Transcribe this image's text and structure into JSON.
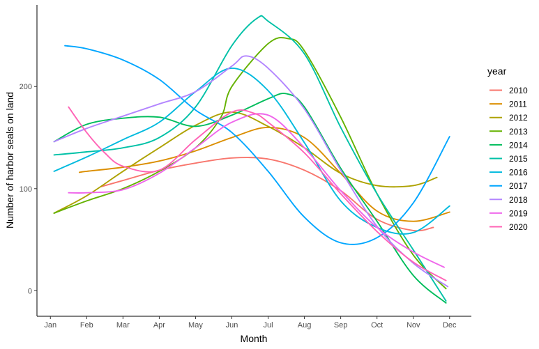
{
  "chart_data": {
    "type": "line",
    "xlabel": "Month",
    "ylabel": "Number of harbor seals on land",
    "x_ticks": [
      "Jan",
      "Feb",
      "Mar",
      "Apr",
      "May",
      "Jun",
      "Jul",
      "Aug",
      "Sep",
      "Oct",
      "Nov",
      "Dec"
    ],
    "y_ticks": [
      0,
      100,
      200
    ],
    "xlim": [
      0.63,
      12.6
    ],
    "ylim": [
      -25,
      280
    ],
    "legend_title": "year",
    "legend_position": "right",
    "grid": false,
    "series": [
      {
        "name": "2010",
        "color": "#F8766D",
        "x": [
          2.4,
          3,
          4,
          5,
          6,
          7,
          8,
          9,
          10,
          11,
          11.55
        ],
        "y": [
          102,
          108,
          118,
          125,
          130,
          129,
          118,
          98,
          70,
          59,
          62
        ]
      },
      {
        "name": "2011",
        "color": "#DB8E00",
        "x": [
          1.8,
          2,
          3,
          4,
          5,
          6,
          7,
          8,
          9,
          10,
          11,
          12
        ],
        "y": [
          116,
          117,
          121,
          127,
          137,
          150,
          160,
          150,
          115,
          78,
          68,
          77
        ]
      },
      {
        "name": "2012",
        "color": "#AEA200",
        "x": [
          1.1,
          2,
          3,
          4,
          5,
          6,
          7,
          8,
          9,
          10,
          11,
          11.65
        ],
        "y": [
          76,
          93,
          117,
          140,
          162,
          175,
          161,
          140,
          115,
          103,
          103,
          111
        ]
      },
      {
        "name": "2013",
        "color": "#64B200",
        "x": [
          1.1,
          2,
          3,
          4,
          5,
          5.7,
          6,
          7,
          7.55,
          8,
          9,
          10,
          11,
          11.9
        ],
        "y": [
          76,
          88,
          100,
          117,
          140,
          170,
          200,
          242,
          247,
          235,
          170,
          95,
          35,
          2
        ]
      },
      {
        "name": "2014",
        "color": "#00BD5C",
        "x": [
          1.1,
          2,
          3,
          4,
          5,
          6,
          7,
          7.5,
          8,
          9,
          10,
          11,
          11.9
        ],
        "y": [
          146,
          163,
          169,
          170,
          161,
          172,
          188,
          193,
          180,
          120,
          68,
          15,
          -12
        ]
      },
      {
        "name": "2015",
        "color": "#00C1A7",
        "x": [
          1.1,
          2,
          3,
          4,
          5,
          6,
          6.7,
          7,
          8,
          9,
          10,
          11,
          11.9
        ],
        "y": [
          133,
          136,
          140,
          150,
          180,
          240,
          267,
          264,
          232,
          160,
          95,
          40,
          -10
        ]
      },
      {
        "name": "2016",
        "color": "#00BADE",
        "x": [
          1.1,
          2,
          3,
          4,
          5,
          6,
          7,
          8,
          9,
          10,
          11,
          12
        ],
        "y": [
          117,
          131,
          148,
          165,
          195,
          218,
          196,
          145,
          88,
          62,
          57,
          83
        ]
      },
      {
        "name": "2017",
        "color": "#00A6FF",
        "x": [
          1.4,
          2,
          3,
          4,
          5,
          6,
          7,
          8,
          9,
          10,
          11,
          12
        ],
        "y": [
          240,
          237,
          226,
          207,
          177,
          155,
          117,
          72,
          47,
          52,
          86,
          151
        ]
      },
      {
        "name": "2018",
        "color": "#B385FF",
        "x": [
          1.1,
          2,
          3,
          4,
          5,
          6,
          6.4,
          7,
          8,
          9,
          10,
          11,
          11.95
        ],
        "y": [
          146,
          159,
          171,
          183,
          195,
          220,
          230,
          218,
          178,
          118,
          63,
          27,
          4
        ]
      },
      {
        "name": "2019",
        "color": "#EF67EB",
        "x": [
          1.5,
          2,
          3,
          4,
          5,
          6,
          7,
          8,
          9,
          10,
          11,
          11.85
        ],
        "y": [
          96,
          96,
          99,
          115,
          140,
          165,
          172,
          140,
          98,
          62,
          38,
          23
        ]
      },
      {
        "name": "2020",
        "color": "#FF63B6",
        "x": [
          1.5,
          2,
          2.5,
          3,
          4,
          5,
          6,
          6.6,
          7,
          8,
          9,
          10,
          11,
          11.9
        ],
        "y": [
          180,
          155,
          135,
          122,
          118,
          148,
          175,
          174,
          165,
          135,
          95,
          58,
          28,
          10
        ]
      }
    ]
  }
}
